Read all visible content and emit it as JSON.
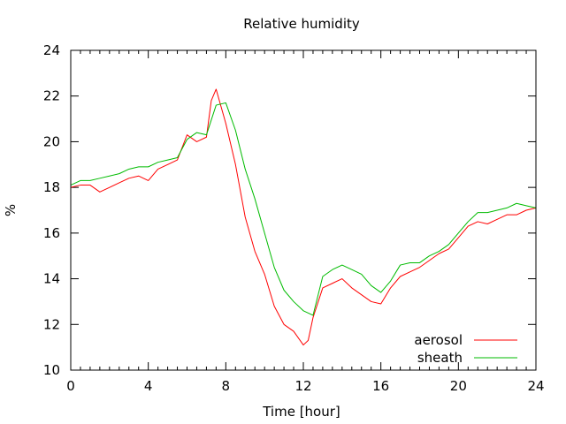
{
  "chart_data": {
    "type": "line",
    "title": "Relative humidity",
    "xlabel": "Time [hour]",
    "ylabel": "%",
    "xlim": [
      0,
      24
    ],
    "ylim": [
      10,
      24
    ],
    "x_ticks": [
      0,
      4,
      8,
      12,
      16,
      20,
      24
    ],
    "y_ticks": [
      10,
      12,
      14,
      16,
      18,
      20,
      22,
      24
    ],
    "grid": false,
    "legend_position": "bottom-right",
    "series": [
      {
        "name": "aerosol",
        "color": "#ff0000",
        "x": [
          0,
          0.5,
          1,
          1.5,
          2,
          2.5,
          3,
          3.5,
          4,
          4.5,
          5,
          5.5,
          6,
          6.5,
          7,
          7.25,
          7.5,
          8,
          8.5,
          9,
          9.5,
          10,
          10.5,
          11,
          11.5,
          12,
          12.25,
          12.5,
          13,
          13.5,
          14,
          14.5,
          15,
          15.5,
          16,
          16.5,
          17,
          17.5,
          18,
          18.5,
          19,
          19.5,
          20,
          20.5,
          21,
          21.5,
          22,
          22.5,
          23,
          23.5,
          24
        ],
        "y": [
          18.0,
          18.1,
          18.1,
          17.8,
          18.0,
          18.2,
          18.4,
          18.5,
          18.3,
          18.8,
          19.0,
          19.2,
          20.3,
          20.0,
          20.2,
          21.8,
          22.3,
          20.8,
          19.0,
          16.7,
          15.2,
          14.2,
          12.8,
          12.0,
          11.7,
          11.1,
          11.3,
          12.3,
          13.6,
          13.8,
          14.0,
          13.6,
          13.3,
          13.0,
          12.9,
          13.6,
          14.1,
          14.3,
          14.5,
          14.8,
          15.1,
          15.3,
          15.8,
          16.3,
          16.5,
          16.4,
          16.6,
          16.8,
          16.8,
          17.0,
          17.1
        ]
      },
      {
        "name": "sheath",
        "color": "#00bb00",
        "x": [
          0,
          0.5,
          1,
          1.5,
          2,
          2.5,
          3,
          3.5,
          4,
          4.5,
          5,
          5.5,
          6,
          6.5,
          7,
          7.5,
          8,
          8.5,
          9,
          9.5,
          10,
          10.5,
          11,
          11.5,
          12,
          12.5,
          13,
          13.5,
          14,
          14.5,
          15,
          15.5,
          16,
          16.5,
          17,
          17.5,
          18,
          18.5,
          19,
          19.5,
          20,
          20.5,
          21,
          21.5,
          22,
          22.5,
          23,
          23.5,
          24
        ],
        "y": [
          18.1,
          18.3,
          18.3,
          18.4,
          18.5,
          18.6,
          18.8,
          18.9,
          18.9,
          19.1,
          19.2,
          19.3,
          20.1,
          20.4,
          20.3,
          21.6,
          21.7,
          20.5,
          18.8,
          17.5,
          16.0,
          14.5,
          13.5,
          13.0,
          12.6,
          12.4,
          14.1,
          14.4,
          14.6,
          14.4,
          14.2,
          13.7,
          13.4,
          13.9,
          14.6,
          14.7,
          14.7,
          15.0,
          15.2,
          15.5,
          16.0,
          16.5,
          16.9,
          16.9,
          17.0,
          17.1,
          17.3,
          17.2,
          17.1
        ]
      }
    ]
  }
}
